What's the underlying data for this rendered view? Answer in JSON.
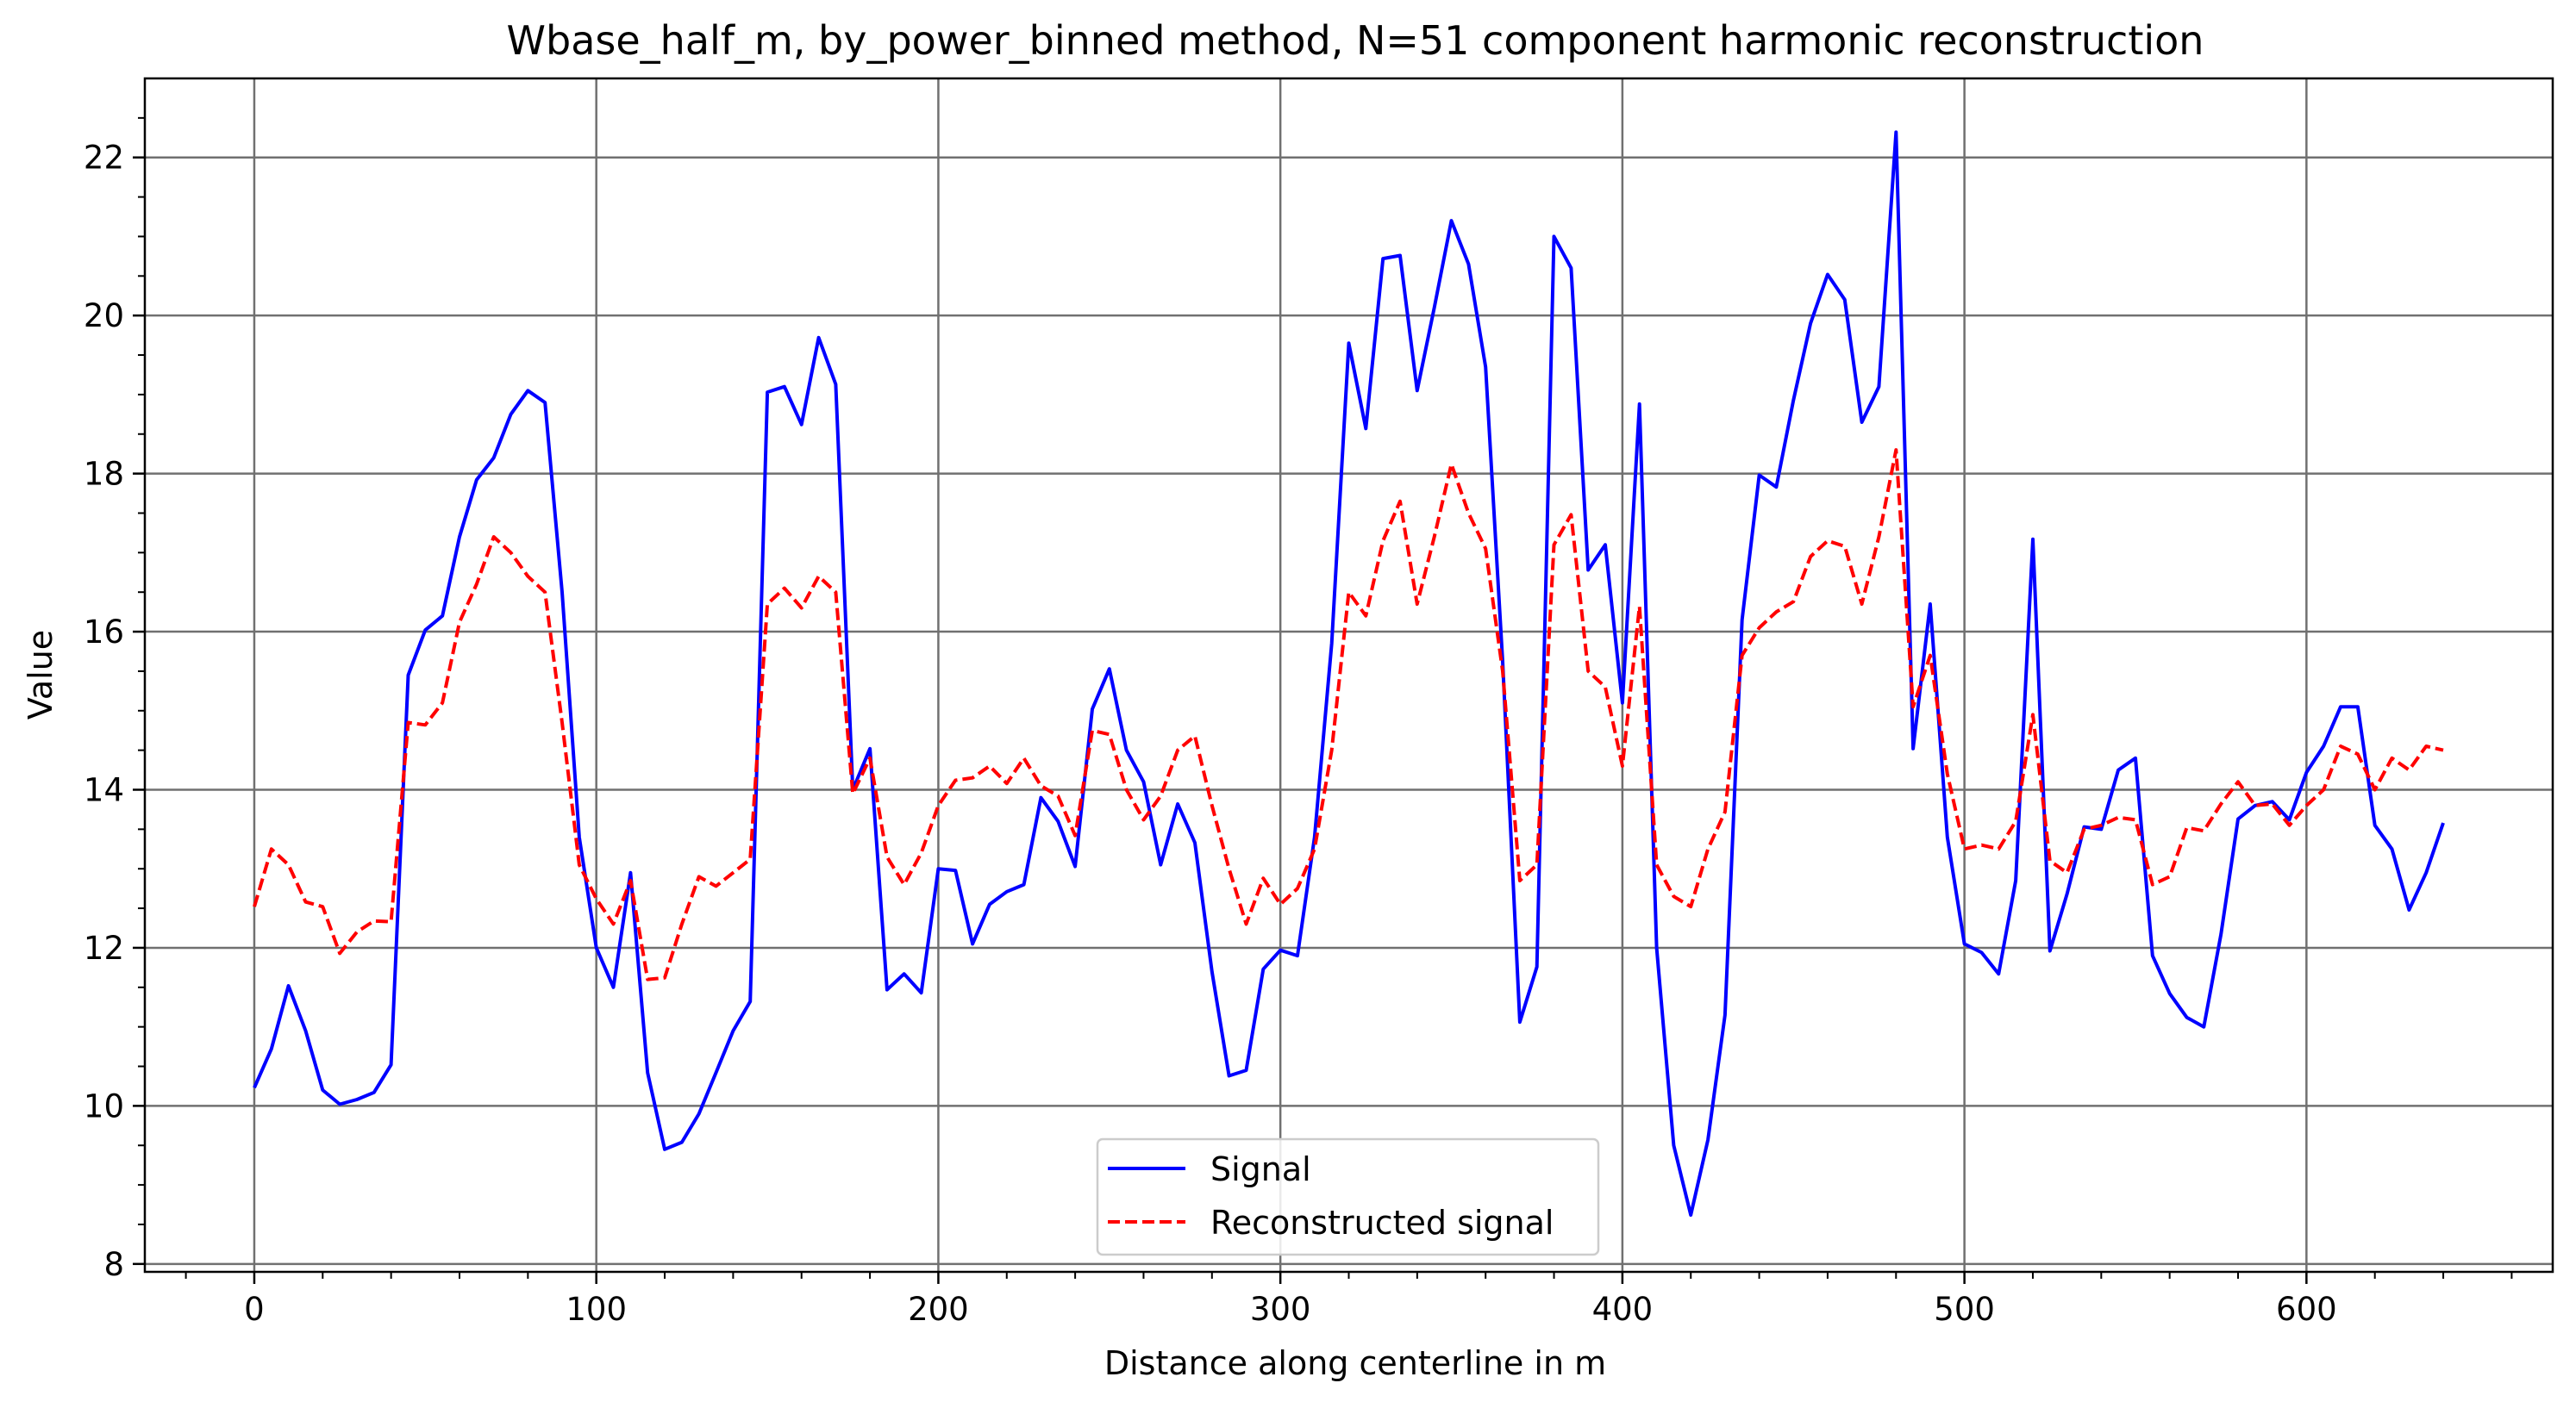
{
  "chart_data": {
    "type": "line",
    "title": "Wbase_half_m, by_power_binned method, N=51 component harmonic reconstruction",
    "xlabel": "Distance along centerline in m",
    "ylabel": "Value",
    "xlim": [
      -32,
      672
    ],
    "ylim": [
      7.9,
      23.0
    ],
    "x_ticks": [
      0,
      100,
      200,
      300,
      400,
      500,
      600
    ],
    "y_ticks": [
      8,
      10,
      12,
      14,
      16,
      18,
      20,
      22
    ],
    "grid": true,
    "legend_position": "bottom-center",
    "x": [
      0,
      5,
      10,
      15,
      20,
      25,
      30,
      35,
      40,
      45,
      50,
      55,
      60,
      65,
      70,
      75,
      80,
      85,
      90,
      95,
      100,
      105,
      110,
      115,
      120,
      125,
      130,
      135,
      140,
      145,
      150,
      155,
      160,
      165,
      170,
      175,
      180,
      185,
      190,
      195,
      200,
      205,
      210,
      215,
      220,
      225,
      230,
      235,
      240,
      245,
      250,
      255,
      260,
      265,
      270,
      275,
      280,
      285,
      290,
      295,
      300,
      305,
      310,
      315,
      320,
      325,
      330,
      335,
      340,
      345,
      350,
      355,
      360,
      365,
      370,
      375,
      380,
      385,
      390,
      395,
      400,
      405,
      410,
      415,
      420,
      425,
      430,
      435,
      440,
      445,
      450,
      455,
      460,
      465,
      470,
      475,
      480,
      485,
      490,
      495,
      500,
      505,
      510,
      515,
      520,
      525,
      530,
      535,
      540,
      545,
      550,
      555,
      560,
      565,
      570,
      575,
      580,
      585,
      590,
      595,
      600,
      605,
      610,
      615,
      620,
      625,
      630,
      635,
      640
    ],
    "series": [
      {
        "name": "Signal",
        "color": "#0000ff",
        "style": "solid",
        "values": [
          10.23,
          10.72,
          11.52,
          10.95,
          10.2,
          10.02,
          10.08,
          10.17,
          10.52,
          15.45,
          16.02,
          16.2,
          17.2,
          17.92,
          18.2,
          18.75,
          19.05,
          18.9,
          16.5,
          13.4,
          12.0,
          11.5,
          12.95,
          10.42,
          9.45,
          9.54,
          9.9,
          10.42,
          10.95,
          11.32,
          19.03,
          19.1,
          18.62,
          19.72,
          19.13,
          14.0,
          14.52,
          11.47,
          11.67,
          11.43,
          13.0,
          12.98,
          12.05,
          12.55,
          12.71,
          12.8,
          13.9,
          13.6,
          13.03,
          15.02,
          15.53,
          14.5,
          14.1,
          13.05,
          13.82,
          13.33,
          11.7,
          10.38,
          10.45,
          11.73,
          11.97,
          11.9,
          13.4,
          15.85,
          19.65,
          18.57,
          20.72,
          20.76,
          19.05,
          20.1,
          21.2,
          20.65,
          19.35,
          15.62,
          11.06,
          11.76,
          21.0,
          20.6,
          16.78,
          17.1,
          15.1,
          18.88,
          12.0,
          9.5,
          8.62,
          9.57,
          11.15,
          16.15,
          17.98,
          17.83,
          18.93,
          19.9,
          20.52,
          20.2,
          18.65,
          19.1,
          22.32,
          14.52,
          16.35,
          13.4,
          12.05,
          11.94,
          11.67,
          12.85,
          17.17,
          11.96,
          12.68,
          13.53,
          13.5,
          14.25,
          14.4,
          11.9,
          11.42,
          11.12,
          11.0,
          12.17,
          13.63,
          13.8,
          13.85,
          13.62,
          14.22,
          14.55,
          15.05,
          15.05,
          13.55,
          13.25,
          12.48,
          12.95,
          13.58
        ]
      },
      {
        "name": "Reconstructed signal",
        "color": "#ff0000",
        "style": "dashed",
        "values": [
          12.52,
          13.25,
          13.05,
          12.58,
          12.52,
          11.93,
          12.2,
          12.34,
          12.33,
          14.85,
          14.82,
          15.1,
          16.12,
          16.6,
          17.2,
          17.0,
          16.7,
          16.5,
          14.85,
          13.05,
          12.62,
          12.3,
          12.85,
          11.6,
          11.62,
          12.3,
          12.9,
          12.78,
          12.95,
          13.12,
          16.35,
          16.55,
          16.3,
          16.7,
          16.5,
          13.95,
          14.4,
          13.15,
          12.8,
          13.2,
          13.8,
          14.12,
          14.15,
          14.3,
          14.08,
          14.4,
          14.05,
          13.92,
          13.42,
          14.75,
          14.7,
          14.0,
          13.62,
          13.92,
          14.5,
          14.68,
          13.8,
          13.0,
          12.3,
          12.88,
          12.55,
          12.75,
          13.25,
          14.5,
          16.5,
          16.2,
          17.15,
          17.65,
          16.35,
          17.2,
          18.12,
          17.5,
          17.05,
          15.5,
          12.85,
          13.05,
          17.1,
          17.48,
          15.5,
          15.3,
          14.3,
          16.32,
          13.05,
          12.65,
          12.52,
          13.25,
          13.72,
          15.7,
          16.05,
          16.25,
          16.38,
          16.95,
          17.15,
          17.08,
          16.35,
          17.2,
          18.3,
          15.05,
          15.7,
          14.2,
          13.25,
          13.3,
          13.25,
          13.6,
          14.95,
          13.1,
          12.95,
          13.5,
          13.55,
          13.65,
          13.62,
          12.8,
          12.9,
          13.52,
          13.48,
          13.82,
          14.1,
          13.8,
          13.82,
          13.55,
          13.8,
          14.0,
          14.55,
          14.45,
          14.0,
          14.4,
          14.25,
          14.55,
          14.5
        ]
      }
    ]
  }
}
